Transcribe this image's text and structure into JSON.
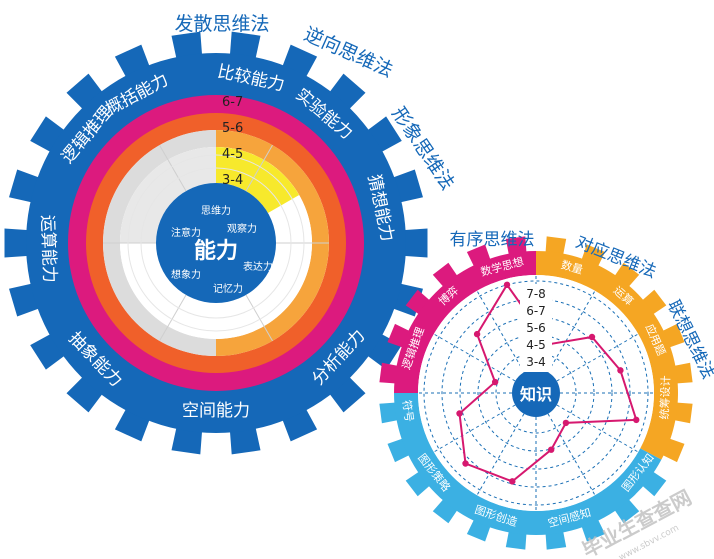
{
  "left_gear": {
    "center_label": "能力",
    "colors": {
      "gear": "#1568b8",
      "ring_magenta": "#dc1a7e",
      "ring_orange": "#f0602a",
      "ring_lightorange": "#f6a43c",
      "ring_yellow": "#f7e92c",
      "ring_gray": "#dcdcdc",
      "ring_white": "#ffffff",
      "tick_lines": "#cfcfcf"
    },
    "level_labels": [
      "6-7",
      "5-6",
      "4-5",
      "3-4"
    ],
    "inner_labels": [
      "思维力",
      "观察力",
      "表达力",
      "记忆力",
      "想象力",
      "注意力"
    ],
    "tooth_labels": [
      "概括能力",
      "比较能力",
      "实验能力",
      "猜想能力",
      "分析能力",
      "空间能力",
      "抽象能力",
      "运算能力",
      "逻辑推理"
    ],
    "outer_labels": [
      "发散思维法",
      "逆向思维法",
      "形象思维法"
    ]
  },
  "right_gear": {
    "center_label": "知识",
    "colors": {
      "magenta": "#dc1a7e",
      "orange": "#f5a623",
      "cyan": "#3bb0e3",
      "center": "#1568b8",
      "polyline": "#d6186f",
      "gridline": "#1a6fb5"
    },
    "level_labels": [
      "7-8",
      "6-7",
      "5-6",
      "4-5",
      "3-4"
    ],
    "ring_labels": [
      "数学思想",
      "数量",
      "运算",
      "应用题",
      "统筹设计",
      "图形认知",
      "空间感知",
      "图形创造",
      "图形策略",
      "符号",
      "逻辑推理",
      "博弈"
    ],
    "outer_labels": [
      "有序思维法",
      "对应思维法",
      "联想思维法"
    ],
    "profile_levels": [
      1.0,
      0.25,
      0.6,
      0.7,
      0.9,
      0.15,
      0.35,
      0.75,
      0.85,
      0.6,
      0.15,
      0.65
    ]
  },
  "watermark": "毕业生查查网",
  "watermark_sub": "www.sbvv.com"
}
